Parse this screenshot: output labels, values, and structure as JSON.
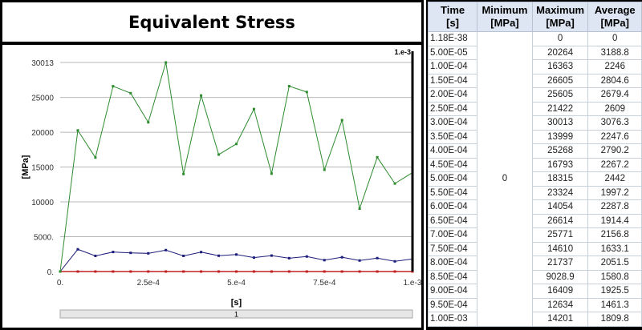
{
  "title": "Equivalent Stress",
  "table": {
    "headers": [
      {
        "line1": "Time",
        "line2": "[s]"
      },
      {
        "line1": "Minimum",
        "line2": "[MPa]"
      },
      {
        "line1": "Maximum",
        "line2": "[MPa]"
      },
      {
        "line1": "Average",
        "line2": "[MPa]"
      }
    ],
    "minimum_merged": "0",
    "rows": [
      {
        "time": "1.18E-38",
        "max": "0",
        "avg": "0"
      },
      {
        "time": "5.00E-05",
        "max": "20264",
        "avg": "3188.8"
      },
      {
        "time": "1.00E-04",
        "max": "16363",
        "avg": "2246"
      },
      {
        "time": "1.50E-04",
        "max": "26605",
        "avg": "2804.6"
      },
      {
        "time": "2.00E-04",
        "max": "25605",
        "avg": "2679.4"
      },
      {
        "time": "2.50E-04",
        "max": "21422",
        "avg": "2609"
      },
      {
        "time": "3.00E-04",
        "max": "30013",
        "avg": "3076.3"
      },
      {
        "time": "3.50E-04",
        "max": "13999",
        "avg": "2247.6"
      },
      {
        "time": "4.00E-04",
        "max": "25268",
        "avg": "2790.2"
      },
      {
        "time": "4.50E-04",
        "max": "16793",
        "avg": "2267.2"
      },
      {
        "time": "5.00E-04",
        "max": "18315",
        "avg": "2442"
      },
      {
        "time": "5.50E-04",
        "max": "23324",
        "avg": "1997.2"
      },
      {
        "time": "6.00E-04",
        "max": "14054",
        "avg": "2287.8"
      },
      {
        "time": "6.50E-04",
        "max": "26614",
        "avg": "1914.4"
      },
      {
        "time": "7.00E-04",
        "max": "25771",
        "avg": "2156.8"
      },
      {
        "time": "7.50E-04",
        "max": "14610",
        "avg": "1633.1"
      },
      {
        "time": "8.00E-04",
        "max": "21737",
        "avg": "2051.5"
      },
      {
        "time": "8.50E-04",
        "max": "9028.9",
        "avg": "1580.8"
      },
      {
        "time": "9.00E-04",
        "max": "16409",
        "avg": "1925.5"
      },
      {
        "time": "9.50E-04",
        "max": "12634",
        "avg": "1461.3"
      },
      {
        "time": "1.00E-03",
        "max": "14201",
        "avg": "1809.8"
      }
    ]
  },
  "chart_data": {
    "type": "line",
    "xlabel": "[s]",
    "ylabel": "[MPa]",
    "xlim": [
      0,
      0.001
    ],
    "ylim": [
      0,
      30013
    ],
    "x_ticks": [
      {
        "v": 0,
        "label": "0."
      },
      {
        "v": 0.00025,
        "label": "2.5e-4"
      },
      {
        "v": 0.0005,
        "label": "5.e-4"
      },
      {
        "v": 0.00075,
        "label": "7.5e-4"
      },
      {
        "v": 0.001,
        "label": "1.e-3"
      }
    ],
    "y_ticks": [
      {
        "v": 0,
        "label": "0."
      },
      {
        "v": 5000,
        "label": "5000."
      },
      {
        "v": 10000,
        "label": "10000"
      },
      {
        "v": 15000,
        "label": "15000"
      },
      {
        "v": 20000,
        "label": "20000"
      },
      {
        "v": 25000,
        "label": "25000"
      },
      {
        "v": 30013,
        "label": "30013"
      }
    ],
    "cursor_label": "1.e-3",
    "slider_label": "1",
    "grid": "horizontal",
    "x": [
      0,
      5e-05,
      0.0001,
      0.00015,
      0.0002,
      0.00025,
      0.0003,
      0.00035,
      0.0004,
      0.00045,
      0.0005,
      0.00055,
      0.0006,
      0.00065,
      0.0007,
      0.00075,
      0.0008,
      0.00085,
      0.0009,
      0.00095,
      0.001
    ],
    "series": [
      {
        "color": "#2e8b2e",
        "values": [
          0,
          20264,
          16363,
          26605,
          25605,
          21422,
          30013,
          13999,
          25268,
          16793,
          18315,
          23324,
          14054,
          26614,
          25771,
          14610,
          21737,
          9028.9,
          16409,
          12634,
          14201
        ]
      },
      {
        "color": "#1c1c7a",
        "values": [
          0,
          3188.8,
          2246,
          2804.6,
          2679.4,
          2609,
          3076.3,
          2247.6,
          2790.2,
          2267.2,
          2442,
          1997.2,
          2287.8,
          1914.4,
          2156.8,
          1633.1,
          2051.5,
          1580.8,
          1925.5,
          1461.3,
          1809.8
        ]
      },
      {
        "color": "#c02020",
        "values": [
          0,
          0,
          0,
          0,
          0,
          0,
          0,
          0,
          0,
          0,
          0,
          0,
          0,
          0,
          0,
          0,
          0,
          0,
          0,
          0,
          0
        ]
      }
    ]
  }
}
